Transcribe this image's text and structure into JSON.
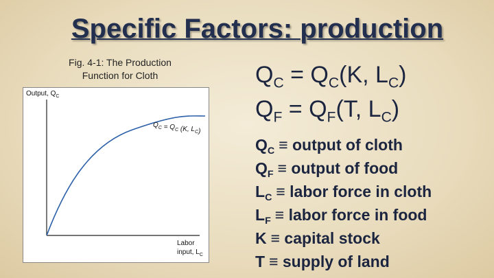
{
  "title": "Specific Factors: production",
  "figure": {
    "caption": [
      "Fig. 4-1: The Production",
      "Function for Cloth"
    ],
    "y_axis_label": [
      {
        "text": "Output, Q",
        "sub": "C"
      }
    ],
    "curve_label": [
      {
        "text": "Q",
        "sub": "C"
      },
      {
        "text": " = Q",
        "sub": "C"
      },
      {
        "text": " (K, L",
        "sub": "C"
      },
      {
        "text": ")"
      }
    ],
    "x_axis_label": [
      [
        {
          "text": "Labor"
        }
      ],
      [
        {
          "text": "input, L",
          "sub": "C"
        }
      ]
    ]
  },
  "equations": [
    [
      {
        "text": "Q",
        "sub": "C"
      },
      {
        "text": " = Q",
        "sub": "C"
      },
      {
        "text": "(K, L",
        "sub": "C"
      },
      {
        "text": ")"
      }
    ],
    [
      {
        "text": "Q",
        "sub": "F"
      },
      {
        "text": " = Q",
        "sub": "F"
      },
      {
        "text": "(T, L",
        "sub": "C"
      },
      {
        "text": ")"
      }
    ]
  ],
  "definitions": [
    {
      "symbol": "Q",
      "sub": "C",
      "definition": "≡ output of cloth"
    },
    {
      "symbol": "Q",
      "sub": "F",
      "definition": "≡ output of food"
    },
    {
      "symbol": "L",
      "sub": "C",
      "definition": "≡ labor force in cloth"
    },
    {
      "symbol": "L",
      "sub": "F",
      "definition": "≡ labor force in food"
    },
    {
      "symbol": "K",
      "definition": "≡ capital stock"
    },
    {
      "symbol": "T",
      "definition": "≡ supply of land"
    }
  ]
}
